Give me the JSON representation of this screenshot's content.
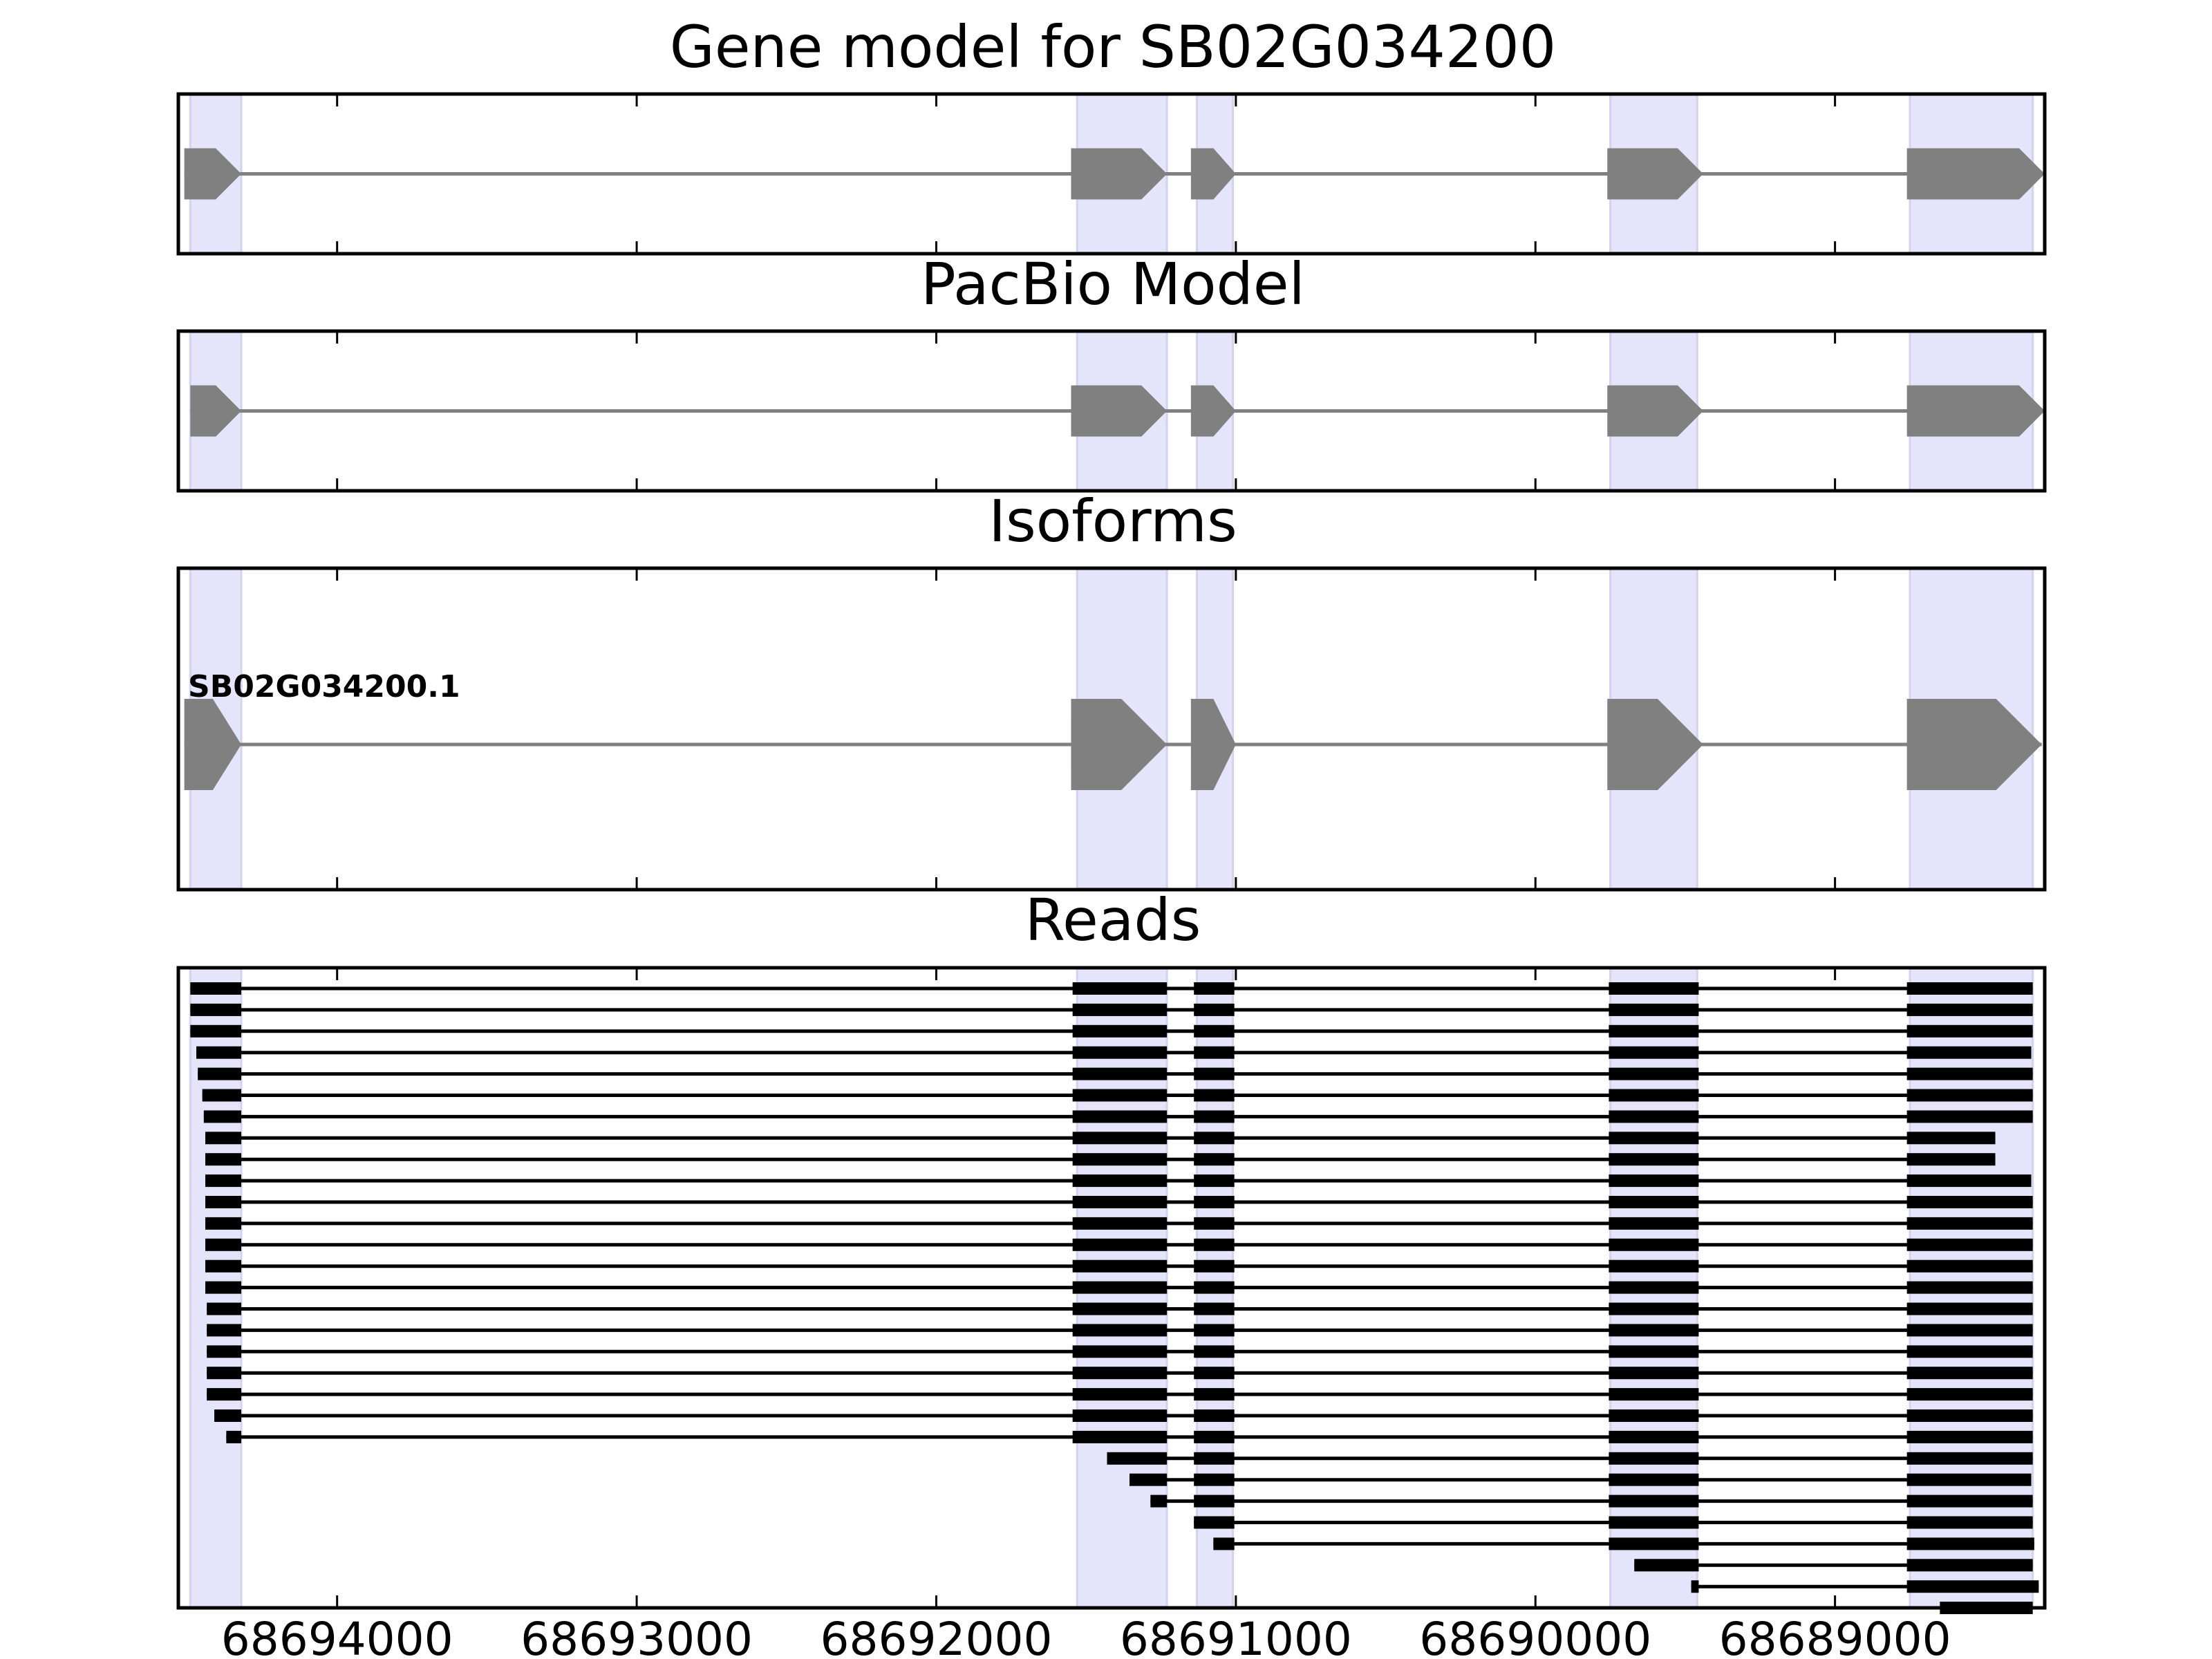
{
  "chart_data": {
    "type": "gene-track",
    "gene_id": "SB02G034200",
    "x_reversed": true,
    "xlim": [
      68694530,
      68688300
    ],
    "x_ticks": [
      68694000,
      68693000,
      68692000,
      68691000,
      68690000,
      68689000
    ],
    "x_tick_labels": [
      "68694000",
      "68693000",
      "68692000",
      "68691000",
      "68690000",
      "68689000"
    ],
    "highlight_color": "#e4e4fb",
    "feature_color": "#808080",
    "read_color": "#000000",
    "highlight_regions": [
      [
        68694490,
        68694320
      ],
      [
        68691530,
        68691230
      ],
      [
        68691130,
        68691010
      ],
      [
        68689750,
        68689460
      ],
      [
        68688750,
        68688340
      ]
    ],
    "panels": [
      {
        "title": "Gene model for SB02G034200",
        "exons": [
          [
            68694510,
            68694320
          ],
          [
            68691550,
            68691230
          ],
          [
            68691150,
            68691000
          ],
          [
            68689760,
            68689440
          ],
          [
            68688760,
            68688300
          ]
        ]
      },
      {
        "title": "PacBio Model",
        "exons": [
          [
            68694490,
            68694320
          ],
          [
            68691550,
            68691230
          ],
          [
            68691150,
            68691000
          ],
          [
            68689760,
            68689440
          ],
          [
            68688760,
            68688300
          ]
        ]
      },
      {
        "title": "Isoforms",
        "isoforms": [
          {
            "name": "SB02G034200.1",
            "exons": [
              [
                68694510,
                68694320
              ],
              [
                68691550,
                68691230
              ],
              [
                68691150,
                68691000
              ],
              [
                68689760,
                68689440
              ],
              [
                68688760,
                68688310
              ]
            ]
          }
        ]
      },
      {
        "title": "Reads",
        "reads": [
          [
            [
              68694490,
              68694320
            ],
            [
              68691545,
              68691230
            ],
            [
              68691140,
              68691005
            ],
            [
              68689755,
              68689455
            ],
            [
              68688760,
              68688340
            ]
          ],
          [
            [
              68694490,
              68694320
            ],
            [
              68691545,
              68691230
            ],
            [
              68691140,
              68691005
            ],
            [
              68689755,
              68689455
            ],
            [
              68688760,
              68688340
            ]
          ],
          [
            [
              68694490,
              68694320
            ],
            [
              68691545,
              68691230
            ],
            [
              68691140,
              68691005
            ],
            [
              68689755,
              68689455
            ],
            [
              68688760,
              68688340
            ]
          ],
          [
            [
              68694470,
              68694320
            ],
            [
              68691545,
              68691230
            ],
            [
              68691140,
              68691005
            ],
            [
              68689755,
              68689455
            ],
            [
              68688760,
              68688345
            ]
          ],
          [
            [
              68694465,
              68694320
            ],
            [
              68691545,
              68691230
            ],
            [
              68691140,
              68691005
            ],
            [
              68689755,
              68689455
            ],
            [
              68688760,
              68688340
            ]
          ],
          [
            [
              68694450,
              68694320
            ],
            [
              68691545,
              68691230
            ],
            [
              68691140,
              68691005
            ],
            [
              68689755,
              68689455
            ],
            [
              68688760,
              68688340
            ]
          ],
          [
            [
              68694445,
              68694320
            ],
            [
              68691545,
              68691230
            ],
            [
              68691140,
              68691005
            ],
            [
              68689755,
              68689455
            ],
            [
              68688760,
              68688340
            ]
          ],
          [
            [
              68694440,
              68694320
            ],
            [
              68691545,
              68691230
            ],
            [
              68691140,
              68691005
            ],
            [
              68689755,
              68689455
            ],
            [
              68688760,
              68688465
            ]
          ],
          [
            [
              68694440,
              68694320
            ],
            [
              68691545,
              68691230
            ],
            [
              68691140,
              68691005
            ],
            [
              68689755,
              68689455
            ],
            [
              68688760,
              68688465
            ]
          ],
          [
            [
              68694440,
              68694320
            ],
            [
              68691545,
              68691230
            ],
            [
              68691140,
              68691005
            ],
            [
              68689755,
              68689455
            ],
            [
              68688760,
              68688345
            ]
          ],
          [
            [
              68694440,
              68694320
            ],
            [
              68691545,
              68691230
            ],
            [
              68691140,
              68691005
            ],
            [
              68689755,
              68689455
            ],
            [
              68688760,
              68688340
            ]
          ],
          [
            [
              68694440,
              68694320
            ],
            [
              68691545,
              68691230
            ],
            [
              68691140,
              68691005
            ],
            [
              68689755,
              68689455
            ],
            [
              68688760,
              68688340
            ]
          ],
          [
            [
              68694440,
              68694320
            ],
            [
              68691545,
              68691230
            ],
            [
              68691140,
              68691005
            ],
            [
              68689755,
              68689455
            ],
            [
              68688760,
              68688340
            ]
          ],
          [
            [
              68694440,
              68694320
            ],
            [
              68691545,
              68691230
            ],
            [
              68691140,
              68691005
            ],
            [
              68689755,
              68689455
            ],
            [
              68688760,
              68688340
            ]
          ],
          [
            [
              68694440,
              68694320
            ],
            [
              68691545,
              68691230
            ],
            [
              68691140,
              68691005
            ],
            [
              68689755,
              68689455
            ],
            [
              68688760,
              68688340
            ]
          ],
          [
            [
              68694435,
              68694320
            ],
            [
              68691545,
              68691230
            ],
            [
              68691140,
              68691005
            ],
            [
              68689755,
              68689455
            ],
            [
              68688760,
              68688340
            ]
          ],
          [
            [
              68694435,
              68694320
            ],
            [
              68691545,
              68691230
            ],
            [
              68691140,
              68691005
            ],
            [
              68689755,
              68689455
            ],
            [
              68688760,
              68688340
            ]
          ],
          [
            [
              68694435,
              68694320
            ],
            [
              68691545,
              68691230
            ],
            [
              68691140,
              68691005
            ],
            [
              68689755,
              68689455
            ],
            [
              68688760,
              68688340
            ]
          ],
          [
            [
              68694435,
              68694320
            ],
            [
              68691545,
              68691230
            ],
            [
              68691140,
              68691005
            ],
            [
              68689755,
              68689455
            ],
            [
              68688760,
              68688340
            ]
          ],
          [
            [
              68694435,
              68694320
            ],
            [
              68691545,
              68691230
            ],
            [
              68691140,
              68691005
            ],
            [
              68689755,
              68689455
            ],
            [
              68688760,
              68688340
            ]
          ],
          [
            [
              68694410,
              68694320
            ],
            [
              68691545,
              68691230
            ],
            [
              68691140,
              68691005
            ],
            [
              68689755,
              68689455
            ],
            [
              68688760,
              68688340
            ]
          ],
          [
            [
              68694370,
              68694320
            ],
            [
              68691545,
              68691230
            ],
            [
              68691140,
              68691005
            ],
            [
              68689755,
              68689455
            ],
            [
              68688760,
              68688340
            ]
          ],
          [
            [
              68691430,
              68691230
            ],
            [
              68691140,
              68691005
            ],
            [
              68689755,
              68689455
            ],
            [
              68688760,
              68688340
            ]
          ],
          [
            [
              68691355,
              68691230
            ],
            [
              68691140,
              68691005
            ],
            [
              68689755,
              68689455
            ],
            [
              68688760,
              68688345
            ]
          ],
          [
            [
              68691285,
              68691230
            ],
            [
              68691140,
              68691005
            ],
            [
              68689755,
              68689455
            ],
            [
              68688760,
              68688340
            ]
          ],
          [
            [
              68691140,
              68691005
            ],
            [
              68689755,
              68689455
            ],
            [
              68688760,
              68688340
            ]
          ],
          [
            [
              68691075,
              68691005
            ],
            [
              68689755,
              68689455
            ],
            [
              68688760,
              68688335
            ]
          ],
          [
            [
              68689670,
              68689455
            ],
            [
              68688760,
              68688340
            ]
          ],
          [
            [
              68689480,
              68689455
            ],
            [
              68688760,
              68688320
            ]
          ],
          [
            [
              68688650,
              68688340
            ]
          ]
        ]
      }
    ]
  }
}
